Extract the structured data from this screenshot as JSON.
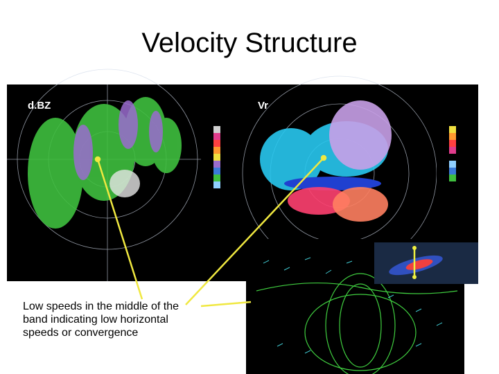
{
  "title": "Velocity Structure",
  "panels": [
    {
      "label": "d.BZ"
    },
    {
      "label": "Vr"
    }
  ],
  "caption": "Low speeds in the middle of the band indicating low horizontal speeds or convergence"
}
